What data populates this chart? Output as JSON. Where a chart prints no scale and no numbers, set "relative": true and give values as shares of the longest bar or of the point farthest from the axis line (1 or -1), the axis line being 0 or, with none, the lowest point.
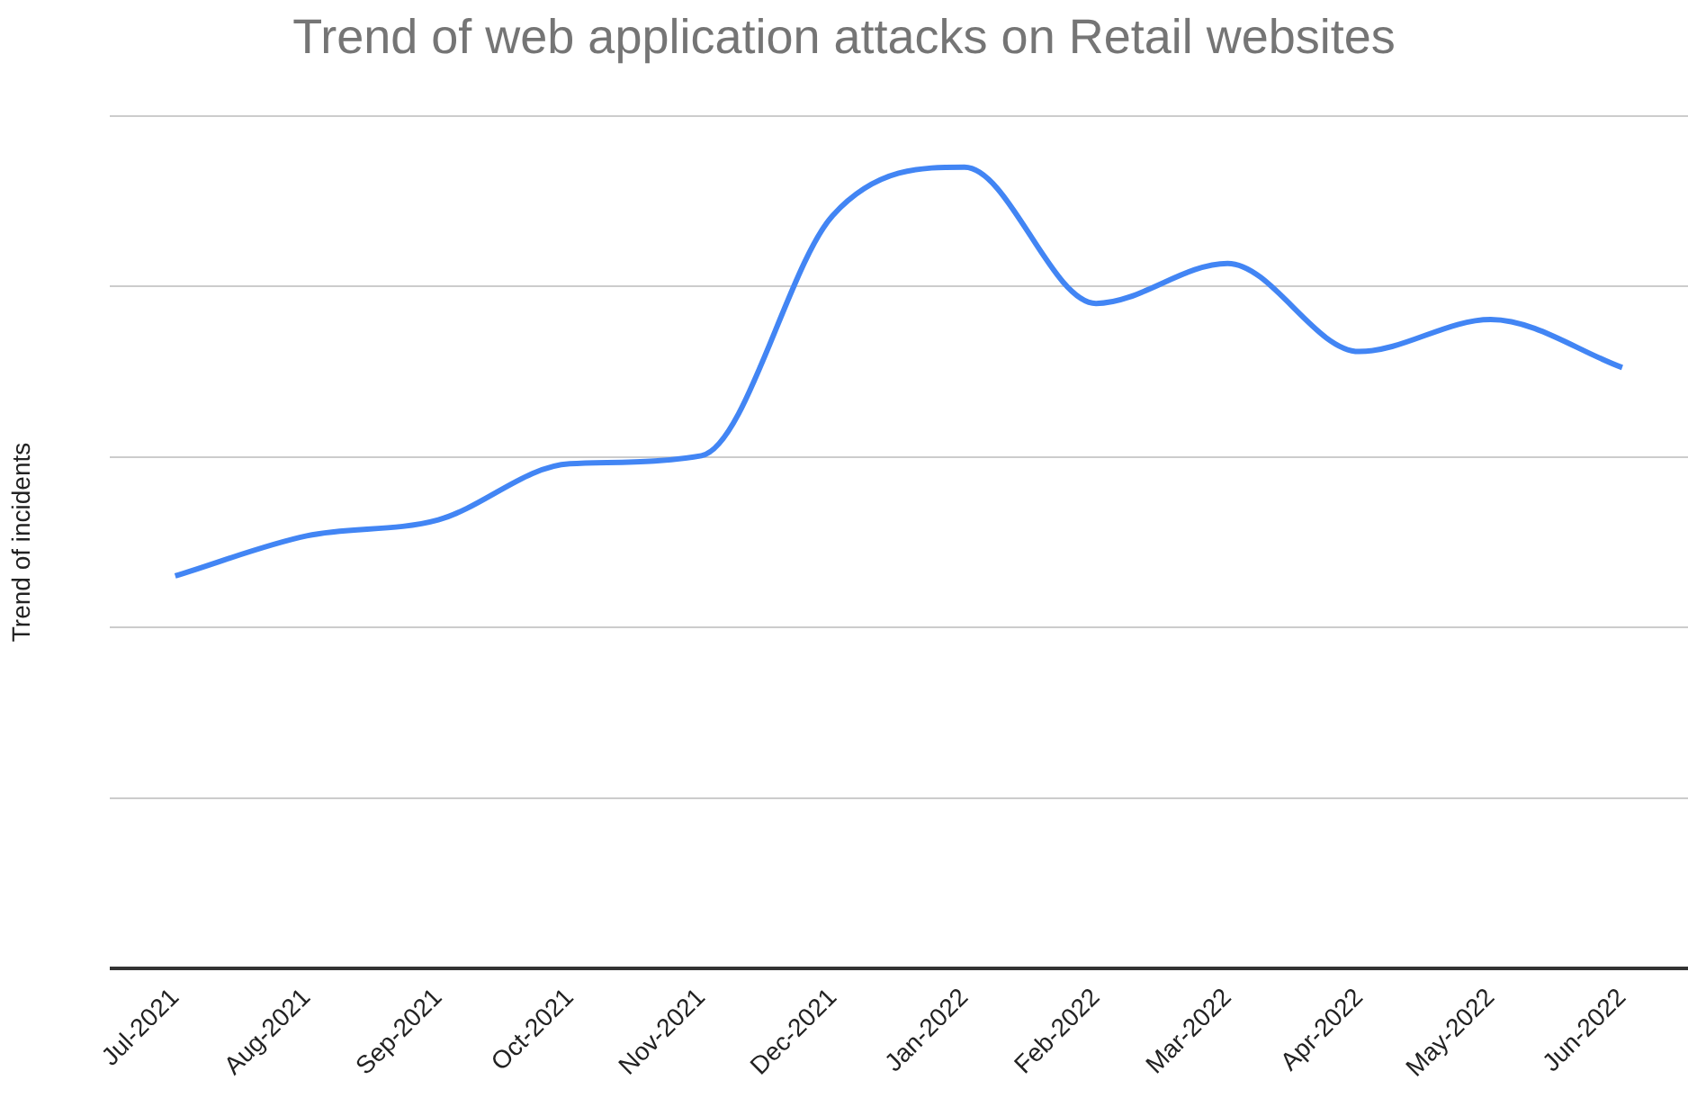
{
  "chart_data": {
    "type": "line",
    "title": "Trend of web application attacks on Retail websites",
    "ylabel": "Trend of incidents",
    "relative": true,
    "grid": "y",
    "legend": false,
    "marker": "none",
    "line_style": "solid",
    "categories": [
      "Jul-2021",
      "Aug-2021",
      "Sep-2021",
      "Oct-2021",
      "Nov-2021",
      "Dec-2021",
      "Jan-2022",
      "Feb-2022",
      "Mar-2022",
      "Apr-2022",
      "May-2022",
      "Jun-2022"
    ],
    "series": [
      {
        "color": "#4285f4",
        "values": [
          0.49,
          0.54,
          0.56,
          0.63,
          0.64,
          0.94,
          1,
          0.83,
          0.88,
          0.77,
          0.81,
          0.75
        ]
      }
    ]
  }
}
